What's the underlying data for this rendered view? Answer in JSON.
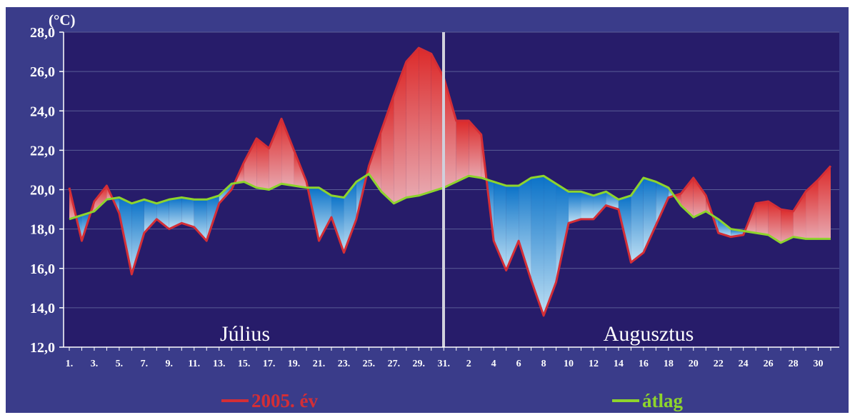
{
  "chart_data": {
    "type": "line",
    "yunit": "(°C)",
    "ylim": [
      12,
      28
    ],
    "yticks": [
      "12,0",
      "14,0",
      "16,0",
      "18,0",
      "20,0",
      "22,0",
      "24,0",
      "26,0",
      "28,0"
    ],
    "grid": true,
    "month_labels": [
      "Július",
      "Augusztus"
    ],
    "x_tick_labels": [
      "1.",
      "3.",
      "5.",
      "7.",
      "9.",
      "11.",
      "13.",
      "15.",
      "17.",
      "19.",
      "21.",
      "23.",
      "25.",
      "27.",
      "29.",
      "31.",
      "2",
      "4",
      "6",
      "8",
      "10",
      "12",
      "14",
      "16",
      "18",
      "20",
      "22",
      "24",
      "26",
      "28",
      "30"
    ],
    "legend": "bottom",
    "series": [
      {
        "name": "2005. év",
        "color": "#d42e36",
        "values": [
          20.1,
          17.4,
          19.4,
          20.2,
          18.8,
          15.7,
          17.8,
          18.5,
          18.0,
          18.3,
          18.1,
          17.4,
          19.3,
          20.0,
          21.4,
          22.6,
          22.1,
          23.6,
          22.0,
          20.4,
          17.4,
          18.6,
          16.8,
          18.5,
          21.2,
          23.0,
          24.8,
          26.5,
          27.2,
          26.9,
          25.7,
          23.5,
          23.5,
          22.8,
          17.4,
          15.9,
          17.4,
          15.4,
          13.6,
          15.3,
          18.3,
          18.5,
          18.5,
          19.2,
          19.0,
          16.3,
          16.8,
          18.2,
          19.6,
          19.8,
          20.6,
          19.7,
          17.8,
          17.6,
          17.7,
          19.3,
          19.4,
          19.0,
          18.9,
          19.9,
          20.5,
          21.2
        ]
      },
      {
        "name": "átlag",
        "color": "#8ed42c",
        "values": [
          18.5,
          18.7,
          18.9,
          19.5,
          19.6,
          19.3,
          19.5,
          19.3,
          19.5,
          19.6,
          19.5,
          19.5,
          19.7,
          20.3,
          20.4,
          20.1,
          20.0,
          20.3,
          20.2,
          20.1,
          20.1,
          19.7,
          19.6,
          20.4,
          20.8,
          19.9,
          19.3,
          19.6,
          19.7,
          19.9,
          20.1,
          20.4,
          20.7,
          20.6,
          20.4,
          20.2,
          20.2,
          20.6,
          20.7,
          20.3,
          19.9,
          19.9,
          19.7,
          19.9,
          19.5,
          19.7,
          20.6,
          20.4,
          20.1,
          19.2,
          18.6,
          18.9,
          18.5,
          18.0,
          17.9,
          17.8,
          17.7,
          17.3,
          17.6,
          17.5,
          17.5,
          17.5
        ]
      }
    ]
  }
}
